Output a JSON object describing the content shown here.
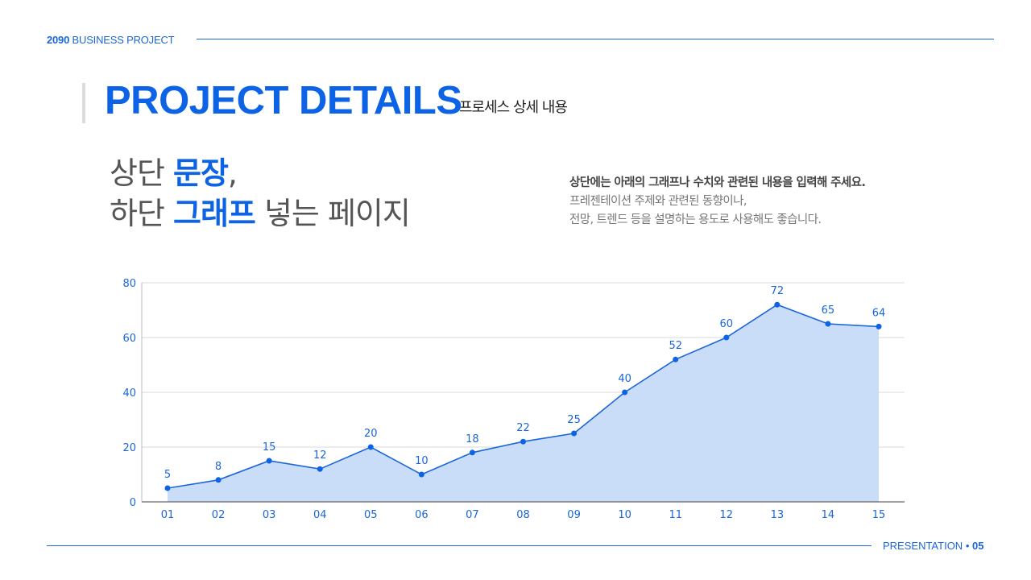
{
  "header": {
    "year": "2090",
    "project_label": "BUSINESS PROJECT"
  },
  "title": {
    "main": "PROJECT DETAILS",
    "sub": "프로세스 상세 내용"
  },
  "headline": {
    "line1_plain": "상단 ",
    "line1_highlight": "문장",
    "line1_suffix": ",",
    "line2_plain": "하단 ",
    "line2_highlight": "그래프",
    "line2_suffix": " 넣는 페이지"
  },
  "description": {
    "line1": "상단에는 아래의 그래프나 수치와 관련된 내용을 입력해 주세요.",
    "line2": "프레젠테이션 주제와 관련된 동향이나,",
    "line3": "전망, 트렌드 등을 설명하는 용도로 사용해도 좋습니다."
  },
  "footer": {
    "label": "PRESENTATION",
    "separator": "•",
    "page": "05"
  },
  "colors": {
    "accent": "#0d63e5",
    "line": "#1a66d9",
    "area_fill": "#c9dcf8",
    "grid": "#d8d8d8",
    "axis": "#666666"
  },
  "chart_data": {
    "type": "area",
    "title": "",
    "xlabel": "",
    "ylabel": "",
    "categories": [
      "01",
      "02",
      "03",
      "04",
      "05",
      "06",
      "07",
      "08",
      "09",
      "10",
      "11",
      "12",
      "13",
      "14",
      "15"
    ],
    "values": [
      5,
      8,
      15,
      12,
      20,
      10,
      18,
      22,
      25,
      40,
      52,
      60,
      72,
      65,
      64
    ],
    "ylim": [
      0,
      80
    ],
    "yticks": [
      0,
      20,
      40,
      60,
      80
    ],
    "grid": true,
    "legend": null,
    "data_labels": true,
    "markers": true
  }
}
